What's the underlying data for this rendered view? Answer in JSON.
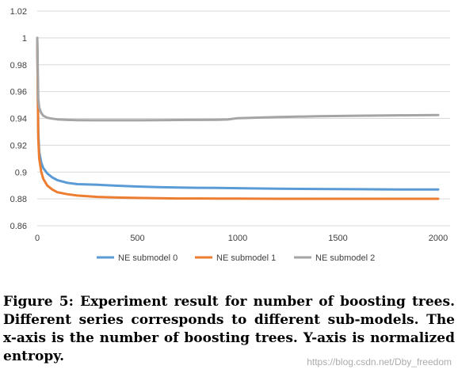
{
  "chart_data": {
    "type": "line",
    "title": "",
    "xlabel": "",
    "ylabel": "",
    "xlim": [
      0,
      2000
    ],
    "ylim": [
      0.86,
      1.02
    ],
    "x_ticks": [
      0,
      500,
      1000,
      1500,
      2000
    ],
    "y_ticks": [
      0.86,
      0.88,
      0.9,
      0.92,
      0.94,
      0.96,
      0.98,
      1,
      1.02
    ],
    "grid": "horizontal",
    "legend_position": "bottom",
    "series": [
      {
        "name": "NE submodel 0",
        "color": "#5B9BD5",
        "x": [
          0,
          5,
          10,
          20,
          30,
          50,
          75,
          100,
          150,
          200,
          300,
          400,
          500,
          600,
          700,
          800,
          900,
          1000,
          1200,
          1400,
          1600,
          1800,
          2000
        ],
        "y": [
          1.0,
          0.93,
          0.915,
          0.907,
          0.903,
          0.899,
          0.896,
          0.894,
          0.892,
          0.891,
          0.8905,
          0.8898,
          0.8892,
          0.8888,
          0.8885,
          0.8883,
          0.8882,
          0.888,
          0.8876,
          0.8874,
          0.8872,
          0.887,
          0.887
        ]
      },
      {
        "name": "NE submodel 1",
        "color": "#ED7D31",
        "x": [
          0,
          5,
          10,
          20,
          30,
          50,
          75,
          100,
          150,
          200,
          300,
          400,
          500,
          600,
          700,
          800,
          900,
          1000,
          1200,
          1400,
          1600,
          1800,
          2000
        ],
        "y": [
          1.0,
          0.925,
          0.91,
          0.9,
          0.895,
          0.89,
          0.887,
          0.885,
          0.8835,
          0.8825,
          0.8815,
          0.881,
          0.8807,
          0.8805,
          0.8803,
          0.8803,
          0.8802,
          0.8802,
          0.8801,
          0.8801,
          0.8801,
          0.8801,
          0.8801
        ]
      },
      {
        "name": "NE submodel 2",
        "color": "#A5A5A5",
        "x": [
          0,
          5,
          10,
          20,
          30,
          50,
          75,
          100,
          150,
          200,
          300,
          400,
          500,
          600,
          700,
          800,
          900,
          950,
          1000,
          1200,
          1400,
          1600,
          1800,
          2000
        ],
        "y": [
          1.0,
          0.955,
          0.948,
          0.944,
          0.942,
          0.9405,
          0.9398,
          0.9393,
          0.9389,
          0.9387,
          0.9386,
          0.9386,
          0.9386,
          0.9387,
          0.9388,
          0.9389,
          0.939,
          0.9392,
          0.9402,
          0.941,
          0.9416,
          0.942,
          0.9423,
          0.9425
        ]
      }
    ]
  },
  "caption": "Figure 5: Experiment result for number of boosting trees. Different series corresponds to different sub-models. The x-axis is the number of boosting trees. Y-axis is normalized entropy.",
  "watermark": "https://blog.csdn.net/Dby_freedom"
}
